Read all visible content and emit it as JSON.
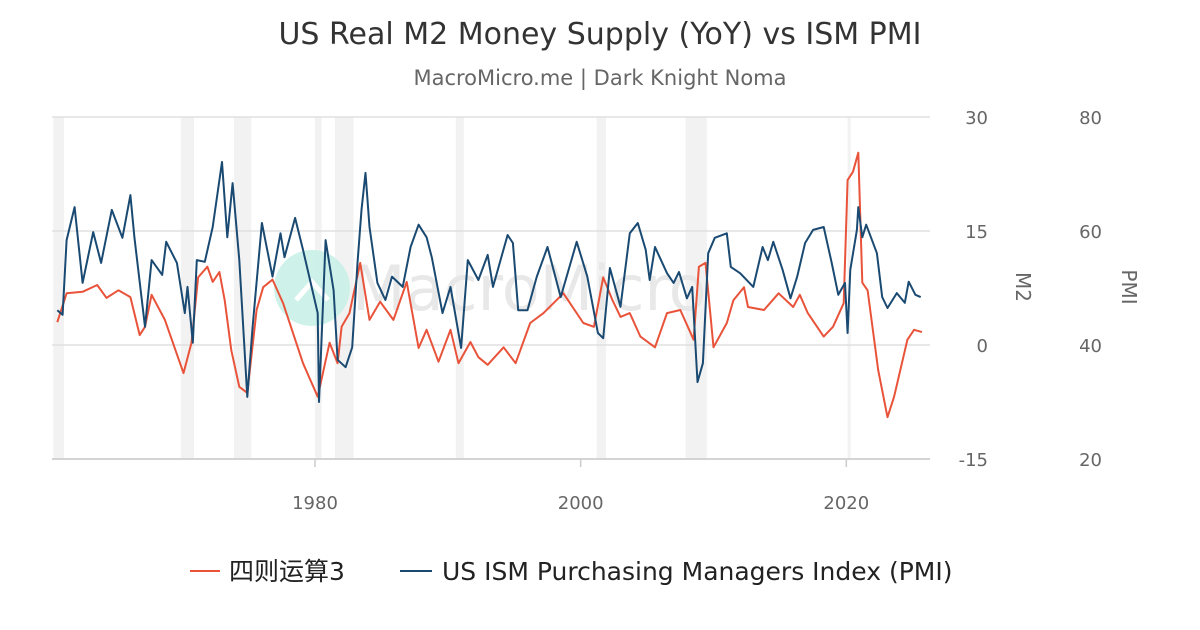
{
  "chart_data": {
    "type": "line",
    "title": "US Real M2 Money Supply (YoY) vs ISM PMI",
    "subtitle": "MacroMicro.me | Dark Knight Noma",
    "watermark": "MacroMicro",
    "grid": true,
    "legend_placement": "bottom",
    "x_axis": {
      "ticks": [
        "1980",
        "2000",
        "2020"
      ],
      "range": [
        1960.2,
        2026.3
      ]
    },
    "y_axes": [
      {
        "label": "M2",
        "range": [
          -15,
          30
        ],
        "ticks": [
          "30",
          "15",
          "0",
          "-15"
        ],
        "tick_values": [
          30,
          15,
          0,
          -15
        ]
      },
      {
        "label": "PMI",
        "range": [
          20,
          80
        ],
        "ticks": [
          "80",
          "60",
          "40",
          "20"
        ],
        "tick_values": [
          80,
          60,
          40,
          20
        ]
      }
    ],
    "recessions": [
      [
        1960.3,
        1961.1
      ],
      [
        1969.9,
        1970.9
      ],
      [
        1973.9,
        1975.2
      ],
      [
        1980.0,
        1980.5
      ],
      [
        1981.5,
        1982.9
      ],
      [
        1990.6,
        1991.2
      ],
      [
        2001.2,
        2001.9
      ],
      [
        2007.9,
        2009.5
      ],
      [
        2020.1,
        2020.3
      ]
    ],
    "series": [
      {
        "name": "四则运算3",
        "axis": "M2",
        "color": "#e8533a",
        "x": [
          1960.6,
          1961.3,
          1962.5,
          1963.6,
          1964.3,
          1965.2,
          1966.1,
          1966.8,
          1967.2,
          1967.7,
          1968.7,
          1970.1,
          1970.7,
          1971.2,
          1971.9,
          1972.3,
          1972.8,
          1973.2,
          1973.7,
          1974.3,
          1974.9,
          1975.6,
          1976.1,
          1976.8,
          1977.6,
          1979.1,
          1980.2,
          1981.1,
          1981.7,
          1982.0,
          1982.6,
          1983.4,
          1984.1,
          1984.9,
          1985.9,
          1986.9,
          1987.8,
          1988.4,
          1989.3,
          1990.2,
          1990.8,
          1991.7,
          1992.3,
          1993.0,
          1994.2,
          1995.1,
          1996.2,
          1997.2,
          1998.7,
          2000.2,
          2001.0,
          2001.7,
          2002.4,
          2003.0,
          2003.7,
          2004.5,
          2005.6,
          2006.5,
          2007.5,
          2008.5,
          2008.9,
          2009.4,
          2010.0,
          2011.0,
          2011.5,
          2012.3,
          2012.6,
          2013.8,
          2014.9,
          2016.0,
          2016.5,
          2017.1,
          2018.3,
          2019.0,
          2019.8,
          2020.1,
          2020.5,
          2020.9,
          2021.2,
          2021.6,
          2022.4,
          2023.1,
          2023.6,
          2024.6,
          2025.1,
          2025.7
        ],
        "values": [
          3.0,
          6.8,
          7.0,
          7.9,
          6.2,
          7.2,
          6.3,
          1.3,
          2.4,
          6.6,
          3.3,
          -3.7,
          0.3,
          8.9,
          10.3,
          8.3,
          9.6,
          5.9,
          -0.7,
          -5.5,
          -6.3,
          4.6,
          7.6,
          8.6,
          5.5,
          -2.4,
          -6.8,
          0.3,
          -2.4,
          2.4,
          4.2,
          10.8,
          3.3,
          5.7,
          3.3,
          8.3,
          -0.4,
          2.0,
          -2.2,
          2.0,
          -2.4,
          0.4,
          -1.6,
          -2.6,
          -0.3,
          -2.4,
          2.9,
          4.2,
          6.8,
          2.9,
          2.4,
          8.9,
          5.9,
          3.7,
          4.2,
          1.1,
          -0.3,
          4.2,
          4.6,
          0.7,
          10.3,
          10.8,
          -0.3,
          2.9,
          5.9,
          7.6,
          5.0,
          4.6,
          6.8,
          5.0,
          6.6,
          4.2,
          1.1,
          2.4,
          5.5,
          21.7,
          22.8,
          25.3,
          8.2,
          7.2,
          -3.3,
          -9.5,
          -6.8,
          0.7,
          2.0,
          1.7
        ]
      },
      {
        "name": "US ISM Purchasing Managers Index (PMI)",
        "axis": "PMI",
        "color": "#1a4a72",
        "x": [
          1960.6,
          1961.0,
          1961.3,
          1961.9,
          1962.5,
          1963.3,
          1963.9,
          1964.7,
          1965.5,
          1966.1,
          1966.4,
          1967.2,
          1967.7,
          1968.5,
          1968.8,
          1969.6,
          1970.2,
          1970.4,
          1970.8,
          1971.1,
          1971.7,
          1972.3,
          1973.0,
          1973.4,
          1973.8,
          1974.3,
          1974.9,
          1975.3,
          1976.0,
          1976.8,
          1977.4,
          1977.7,
          1978.5,
          1979.1,
          1980.2,
          1980.3,
          1980.8,
          1981.4,
          1981.7,
          1982.3,
          1982.8,
          1983.2,
          1983.5,
          1983.8,
          1984.1,
          1984.7,
          1985.3,
          1985.8,
          1986.6,
          1987.2,
          1987.8,
          1988.4,
          1988.8,
          1989.6,
          1990.2,
          1991.0,
          1991.5,
          1992.3,
          1993.0,
          1993.4,
          1994.5,
          1994.9,
          1995.3,
          1996.0,
          1996.7,
          1997.5,
          1998.5,
          1999.7,
          2000.5,
          2001.3,
          2001.7,
          2002.2,
          2003.0,
          2003.7,
          2004.3,
          2004.9,
          2005.2,
          2005.6,
          2006.5,
          2007.0,
          2007.4,
          2008.0,
          2008.4,
          2008.8,
          2009.2,
          2009.6,
          2010.1,
          2011.0,
          2011.3,
          2012.0,
          2013.0,
          2013.7,
          2014.1,
          2014.5,
          2015.2,
          2015.8,
          2016.3,
          2016.9,
          2017.5,
          2018.3,
          2018.9,
          2019.4,
          2019.9,
          2020.1,
          2020.3,
          2020.8,
          2020.9,
          2021.2,
          2021.5,
          2022.3,
          2022.7,
          2023.1,
          2023.8,
          2024.4,
          2024.7,
          2025.2,
          2025.6
        ],
        "values": [
          46.1,
          45.3,
          58.4,
          64.2,
          50.9,
          59.8,
          54.4,
          63.7,
          58.8,
          66.3,
          58.9,
          43.2,
          54.9,
          52.3,
          58.1,
          54.4,
          45.6,
          50.2,
          40.4,
          54.9,
          54.6,
          60.7,
          72.1,
          58.9,
          68.4,
          54.9,
          30.9,
          43.2,
          61.4,
          52.0,
          59.6,
          55.4,
          62.3,
          56.7,
          45.6,
          30.0,
          58.4,
          49.6,
          37.4,
          36.1,
          39.6,
          54.4,
          63.7,
          70.2,
          60.7,
          50.9,
          47.9,
          52.0,
          50.2,
          57.2,
          61.1,
          58.9,
          55.3,
          45.6,
          50.2,
          39.5,
          54.9,
          51.4,
          55.8,
          50.2,
          59.3,
          57.9,
          46.1,
          46.1,
          52.0,
          57.2,
          48.4,
          58.1,
          52.0,
          42.1,
          41.2,
          53.5,
          46.7,
          59.6,
          61.4,
          56.7,
          51.4,
          57.2,
          52.6,
          50.9,
          52.8,
          48.2,
          50.2,
          33.5,
          36.8,
          56.1,
          58.8,
          59.6,
          53.7,
          52.6,
          50.2,
          57.2,
          54.9,
          58.1,
          53.2,
          48.2,
          52.0,
          57.9,
          60.2,
          60.7,
          54.4,
          48.8,
          50.9,
          42.1,
          53.2,
          60.2,
          64.2,
          58.9,
          61.1,
          56.1,
          48.4,
          46.5,
          49.1,
          47.4,
          51.1,
          48.8,
          48.4
        ]
      }
    ]
  }
}
